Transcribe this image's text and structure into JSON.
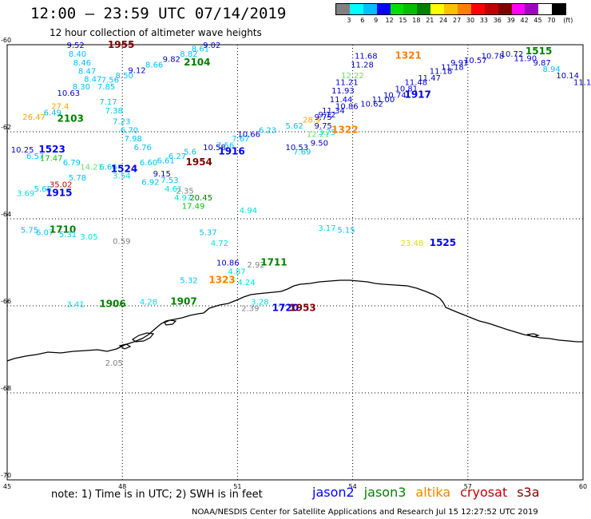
{
  "header": {
    "title": "12:00 — 23:59 UTC 07/14/2019",
    "subtitle": "12 hour collection of altimeter wave heights"
  },
  "legend": {
    "colors": [
      "#808080",
      "#00ffff",
      "#00bfff",
      "#0000ff",
      "#00e000",
      "#00c000",
      "#008000",
      "#ffff00",
      "#ffc000",
      "#ff8000",
      "#ff0000",
      "#c00000",
      "#800000",
      "#ff00ff",
      "#a000c0",
      "#ffffff",
      "#000000"
    ],
    "labels": [
      "3",
      "6",
      "9",
      "12",
      "15",
      "18",
      "21",
      "24",
      "27",
      "30",
      "33",
      "36",
      "39",
      "42",
      "45",
      "70"
    ],
    "unit": "(ft)"
  },
  "map": {
    "lon_range": [
      45,
      60
    ],
    "lat_range": [
      -60,
      -70
    ],
    "x_ticks": [
      "45",
      "48",
      "51",
      "54",
      "57",
      "60"
    ],
    "y_ticks": [
      "-60",
      "-62",
      "-64",
      "-66",
      "-68",
      "-70"
    ],
    "coastline": "dark"
  },
  "observations": [
    {
      "t": "9.52",
      "c": "#0000cc",
      "lon": 46.55,
      "lat": -60.0
    },
    {
      "t": "1955",
      "c": "#800000",
      "lon": 47.62,
      "lat": -60.0,
      "time": true
    },
    {
      "t": "8.40",
      "c": "#00bfff",
      "lon": 46.6,
      "lat": -60.2
    },
    {
      "t": "8.46",
      "c": "#00bfff",
      "lon": 46.72,
      "lat": -60.4
    },
    {
      "t": "8.47",
      "c": "#00bfff",
      "lon": 46.85,
      "lat": -60.6
    },
    {
      "t": "8.47",
      "c": "#00bfff",
      "lon": 47.0,
      "lat": -60.78
    },
    {
      "t": "8.30",
      "c": "#00bfff",
      "lon": 46.7,
      "lat": -60.95
    },
    {
      "t": "7.85",
      "c": "#00bfff",
      "lon": 47.35,
      "lat": -60.95
    },
    {
      "t": "7.56",
      "c": "#00bfff",
      "lon": 47.45,
      "lat": -60.8
    },
    {
      "t": "8.50",
      "c": "#00bfff",
      "lon": 47.82,
      "lat": -60.7
    },
    {
      "t": "9.12",
      "c": "#0000cc",
      "lon": 48.15,
      "lat": -60.58
    },
    {
      "t": "8.66",
      "c": "#00bfff",
      "lon": 48.6,
      "lat": -60.45
    },
    {
      "t": "9.82",
      "c": "#0000cc",
      "lon": 49.05,
      "lat": -60.32
    },
    {
      "t": "8.82",
      "c": "#00bfff",
      "lon": 49.5,
      "lat": -60.2
    },
    {
      "t": "8.61",
      "c": "#00bfff",
      "lon": 49.8,
      "lat": -60.08
    },
    {
      "t": "9.02",
      "c": "#0000cc",
      "lon": 50.1,
      "lat": -60.0
    },
    {
      "t": "2104",
      "c": "#008000",
      "lon": 49.6,
      "lat": -60.4,
      "time": true
    },
    {
      "t": "10.63",
      "c": "#0000cc",
      "lon": 46.3,
      "lat": -61.1
    },
    {
      "t": "26.47",
      "c": "#ffa500",
      "lon": 45.4,
      "lat": -61.65
    },
    {
      "t": "6.49",
      "c": "#00bfff",
      "lon": 45.95,
      "lat": -61.55
    },
    {
      "t": "27.4",
      "c": "#ffa500",
      "lon": 46.15,
      "lat": -61.4
    },
    {
      "t": "2103",
      "c": "#008000",
      "lon": 46.3,
      "lat": -61.7,
      "time": true
    },
    {
      "t": "7.17",
      "c": "#00bfff",
      "lon": 47.4,
      "lat": -61.3
    },
    {
      "t": "7.38",
      "c": "#00bfff",
      "lon": 47.55,
      "lat": -61.5
    },
    {
      "t": "7.23",
      "c": "#00bfff",
      "lon": 47.75,
      "lat": -61.75
    },
    {
      "t": "6.70",
      "c": "#00bfff",
      "lon": 47.95,
      "lat": -61.95
    },
    {
      "t": "7.98",
      "c": "#00bfff",
      "lon": 48.05,
      "lat": -62.15
    },
    {
      "t": "6.76",
      "c": "#00bfff",
      "lon": 48.3,
      "lat": -62.35
    },
    {
      "t": "10.25",
      "c": "#0000cc",
      "lon": 45.1,
      "lat": -62.4
    },
    {
      "t": "1523",
      "c": "#0000ff",
      "lon": 45.82,
      "lat": -62.4,
      "time": true
    },
    {
      "t": "6.57",
      "c": "#00bfff",
      "lon": 45.5,
      "lat": -62.55
    },
    {
      "t": "17.47",
      "c": "#00c000",
      "lon": 45.85,
      "lat": -62.6
    },
    {
      "t": "6.79",
      "c": "#00bfff",
      "lon": 46.45,
      "lat": -62.7
    },
    {
      "t": "14.21",
      "c": "#66dd66",
      "lon": 46.9,
      "lat": -62.8
    },
    {
      "t": "6.66",
      "c": "#00bfff",
      "lon": 47.4,
      "lat": -62.8
    },
    {
      "t": "1524",
      "c": "#0000ff",
      "lon": 47.7,
      "lat": -62.85,
      "time": true
    },
    {
      "t": "3.54",
      "c": "#00e0e0",
      "lon": 47.75,
      "lat": -63.0
    },
    {
      "t": "6.60",
      "c": "#00bfff",
      "lon": 48.45,
      "lat": -62.7
    },
    {
      "t": "6.61",
      "c": "#00bfff",
      "lon": 48.9,
      "lat": -62.65
    },
    {
      "t": "6.27",
      "c": "#00bfff",
      "lon": 49.2,
      "lat": -62.55
    },
    {
      "t": "5.6",
      "c": "#00bfff",
      "lon": 49.6,
      "lat": -62.45
    },
    {
      "t": "9.15",
      "c": "#0000cc",
      "lon": 48.8,
      "lat": -62.95
    },
    {
      "t": "1954",
      "c": "#800000",
      "lon": 49.65,
      "lat": -62.7,
      "time": true
    },
    {
      "t": "6.92",
      "c": "#00bfff",
      "lon": 48.5,
      "lat": -63.15
    },
    {
      "t": "7.53",
      "c": "#00bfff",
      "lon": 49.0,
      "lat": -63.1
    },
    {
      "t": "4.61",
      "c": "#00e0e0",
      "lon": 49.1,
      "lat": -63.3
    },
    {
      "t": "2.35",
      "c": "#808080",
      "lon": 49.4,
      "lat": -63.35
    },
    {
      "t": "4.97",
      "c": "#00e0e0",
      "lon": 49.35,
      "lat": -63.5
    },
    {
      "t": "20.45",
      "c": "#008000",
      "lon": 49.75,
      "lat": -63.5
    },
    {
      "t": "17.49",
      "c": "#00c000",
      "lon": 49.55,
      "lat": -63.7
    },
    {
      "t": "5.78",
      "c": "#00bfff",
      "lon": 46.6,
      "lat": -63.05
    },
    {
      "t": "35.02",
      "c": "#c00000",
      "lon": 46.1,
      "lat": -63.2
    },
    {
      "t": "3.69",
      "c": "#00e0e0",
      "lon": 45.25,
      "lat": -63.4
    },
    {
      "t": "5.65",
      "c": "#00bfff",
      "lon": 45.7,
      "lat": -63.3
    },
    {
      "t": "1915",
      "c": "#0000ff",
      "lon": 46.0,
      "lat": -63.4,
      "time": true
    },
    {
      "t": "10.58",
      "c": "#0000cc",
      "lon": 50.1,
      "lat": -62.35
    },
    {
      "t": "7.56",
      "c": "#00bfff",
      "lon": 50.45,
      "lat": -62.3
    },
    {
      "t": "1916",
      "c": "#0000ff",
      "lon": 50.5,
      "lat": -62.45,
      "time": true
    },
    {
      "t": "7.67",
      "c": "#00bfff",
      "lon": 50.85,
      "lat": -62.15
    },
    {
      "t": "10.66",
      "c": "#0000cc",
      "lon": 51.0,
      "lat": -62.05
    },
    {
      "t": "6.23",
      "c": "#00bfff",
      "lon": 51.55,
      "lat": -61.95
    },
    {
      "t": "5.62",
      "c": "#00bfff",
      "lon": 52.25,
      "lat": -61.85
    },
    {
      "t": "28.9",
      "c": "#ffa500",
      "lon": 52.7,
      "lat": -61.72
    },
    {
      "t": "9.75",
      "c": "#0000cc",
      "lon": 53.0,
      "lat": -61.65
    },
    {
      "t": "12.21",
      "c": "#66dd66",
      "lon": 52.8,
      "lat": -62.05
    },
    {
      "t": "9.50",
      "c": "#0000cc",
      "lon": 52.9,
      "lat": -62.25
    },
    {
      "t": "10.53",
      "c": "#0000cc",
      "lon": 52.25,
      "lat": -62.35
    },
    {
      "t": "7.69",
      "c": "#00bfff",
      "lon": 52.45,
      "lat": -62.45
    },
    {
      "t": "3.75",
      "c": "#00e0e0",
      "lon": 53.1,
      "lat": -62.0
    },
    {
      "t": "9.75",
      "c": "#0000cc",
      "lon": 53.0,
      "lat": -61.85
    },
    {
      "t": "1322",
      "c": "#ff8000",
      "lon": 53.45,
      "lat": -61.95,
      "time": true
    },
    {
      "t": "11.34",
      "c": "#0000cc",
      "lon": 53.2,
      "lat": -61.5
    },
    {
      "t": "10.86",
      "c": "#0000cc",
      "lon": 53.55,
      "lat": -61.4
    },
    {
      "t": "9.12",
      "c": "#0000cc",
      "lon": 53.1,
      "lat": -61.6
    },
    {
      "t": "11.44",
      "c": "#0000cc",
      "lon": 53.4,
      "lat": -61.25
    },
    {
      "t": "11.93",
      "c": "#0000cc",
      "lon": 53.45,
      "lat": -61.05
    },
    {
      "t": "11.21",
      "c": "#0000cc",
      "lon": 53.55,
      "lat": -60.85
    },
    {
      "t": "12.22",
      "c": "#66dd66",
      "lon": 53.7,
      "lat": -60.7
    },
    {
      "t": "11.28",
      "c": "#0000cc",
      "lon": 53.95,
      "lat": -60.45
    },
    {
      "t": "11.68",
      "c": "#0000cc",
      "lon": 54.05,
      "lat": -60.25
    },
    {
      "t": "1321",
      "c": "#ff8000",
      "lon": 55.1,
      "lat": -60.25,
      "time": true
    },
    {
      "t": "10.62",
      "c": "#0000cc",
      "lon": 54.2,
      "lat": -61.35
    },
    {
      "t": "11.00",
      "c": "#0000cc",
      "lon": 54.5,
      "lat": -61.25
    },
    {
      "t": "10.74",
      "c": "#0000cc",
      "lon": 54.8,
      "lat": -61.15
    },
    {
      "t": "10.81",
      "c": "#0000cc",
      "lon": 55.1,
      "lat": -61.0
    },
    {
      "t": "1917",
      "c": "#0000ff",
      "lon": 55.35,
      "lat": -61.15,
      "time": true
    },
    {
      "t": "11.48",
      "c": "#0000cc",
      "lon": 55.35,
      "lat": -60.85
    },
    {
      "t": "11.47",
      "c": "#0000cc",
      "lon": 55.7,
      "lat": -60.75
    },
    {
      "t": "11.18",
      "c": "#0000cc",
      "lon": 56.0,
      "lat": -60.6
    },
    {
      "t": "11.18",
      "c": "#0000cc",
      "lon": 56.3,
      "lat": -60.5
    },
    {
      "t": "9.91",
      "c": "#0000cc",
      "lon": 56.55,
      "lat": -60.4
    },
    {
      "t": "10.57",
      "c": "#0000cc",
      "lon": 56.9,
      "lat": -60.35
    },
    {
      "t": "10.78",
      "c": "#0000cc",
      "lon": 57.35,
      "lat": -60.25
    },
    {
      "t": "10.72",
      "c": "#0000cc",
      "lon": 57.85,
      "lat": -60.2
    },
    {
      "t": "11.90",
      "c": "#0000cc",
      "lon": 58.2,
      "lat": -60.3
    },
    {
      "t": "1515",
      "c": "#008000",
      "lon": 58.5,
      "lat": -60.15,
      "time": true
    },
    {
      "t": "9.87",
      "c": "#0000cc",
      "lon": 58.7,
      "lat": -60.4
    },
    {
      "t": "8.94",
      "c": "#00bfff",
      "lon": 58.95,
      "lat": -60.55
    },
    {
      "t": "10.14",
      "c": "#0000cc",
      "lon": 59.3,
      "lat": -60.7
    },
    {
      "t": "11.10",
      "c": "#0000cc",
      "lon": 59.75,
      "lat": -60.85
    },
    {
      "t": "5.75",
      "c": "#00bfff",
      "lon": 45.35,
      "lat": -64.25
    },
    {
      "t": "6.07",
      "c": "#00bfff",
      "lon": 45.75,
      "lat": -64.3
    },
    {
      "t": "1710",
      "c": "#008000",
      "lon": 46.1,
      "lat": -64.25,
      "time": true
    },
    {
      "t": "5.31",
      "c": "#00bfff",
      "lon": 46.35,
      "lat": -64.35
    },
    {
      "t": "3.05",
      "c": "#00e0e0",
      "lon": 46.9,
      "lat": -64.4
    },
    {
      "t": "0.59",
      "c": "#808080",
      "lon": 47.75,
      "lat": -64.5
    },
    {
      "t": "4.94",
      "c": "#00e0e0",
      "lon": 51.05,
      "lat": -63.8
    },
    {
      "t": "5.37",
      "c": "#00bfff",
      "lon": 50.0,
      "lat": -64.3
    },
    {
      "t": "4.72",
      "c": "#00e0e0",
      "lon": 50.3,
      "lat": -64.55
    },
    {
      "t": "3.17",
      "c": "#00e0e0",
      "lon": 53.1,
      "lat": -64.2
    },
    {
      "t": "5.15",
      "c": "#00bfff",
      "lon": 53.6,
      "lat": -64.25
    },
    {
      "t": "23.48",
      "c": "#dddd00",
      "lon": 55.25,
      "lat": -64.55
    },
    {
      "t": "1525",
      "c": "#0000ff",
      "lon": 56.0,
      "lat": -64.55,
      "time": true
    },
    {
      "t": "10.86",
      "c": "#0000cc",
      "lon": 50.45,
      "lat": -65.0
    },
    {
      "t": "2.92",
      "c": "#808080",
      "lon": 51.25,
      "lat": -65.05
    },
    {
      "t": "1711",
      "c": "#008000",
      "lon": 51.6,
      "lat": -65.0,
      "time": true
    },
    {
      "t": "4.87",
      "c": "#00e0e0",
      "lon": 50.75,
      "lat": -65.2
    },
    {
      "t": "5.32",
      "c": "#00bfff",
      "lon": 49.5,
      "lat": -65.4
    },
    {
      "t": "1323",
      "c": "#ff8000",
      "lon": 50.25,
      "lat": -65.4,
      "time": true
    },
    {
      "t": "4.24",
      "c": "#00e0e0",
      "lon": 51.0,
      "lat": -65.45
    },
    {
      "t": "3.28",
      "c": "#00e0e0",
      "lon": 51.35,
      "lat": -65.9
    },
    {
      "t": "2.39",
      "c": "#808080",
      "lon": 51.1,
      "lat": -66.05
    },
    {
      "t": "1720",
      "c": "#0000ff",
      "lon": 51.9,
      "lat": -66.05,
      "time": true
    },
    {
      "t": "1953",
      "c": "#800000",
      "lon": 52.35,
      "lat": -66.05,
      "time": true
    },
    {
      "t": "3.41",
      "c": "#00e0e0",
      "lon": 46.55,
      "lat": -65.95
    },
    {
      "t": "1906",
      "c": "#008000",
      "lon": 47.4,
      "lat": -65.95,
      "time": true
    },
    {
      "t": "4.28",
      "c": "#00e0e0",
      "lon": 48.45,
      "lat": -65.9
    },
    {
      "t": "1907",
      "c": "#008000",
      "lon": 49.25,
      "lat": -65.9,
      "time": true
    },
    {
      "t": "2.05",
      "c": "#808080",
      "lon": 47.55,
      "lat": -67.3
    }
  ],
  "footer": {
    "note": "note: 1) Time is in UTC; 2) SWH is in feet",
    "satellites": [
      {
        "name": "jason2",
        "color": "#0000ff"
      },
      {
        "name": "jason3",
        "color": "#008000"
      },
      {
        "name": "altika",
        "color": "#ff8000"
      },
      {
        "name": "cryosat",
        "color": "#c00000"
      },
      {
        "name": "s3a",
        "color": "#800000"
      }
    ],
    "credit": "NOAA/NESDIS Center for Satellite Applications and Research   Jul 15 12:27:52 UTC 2019"
  }
}
